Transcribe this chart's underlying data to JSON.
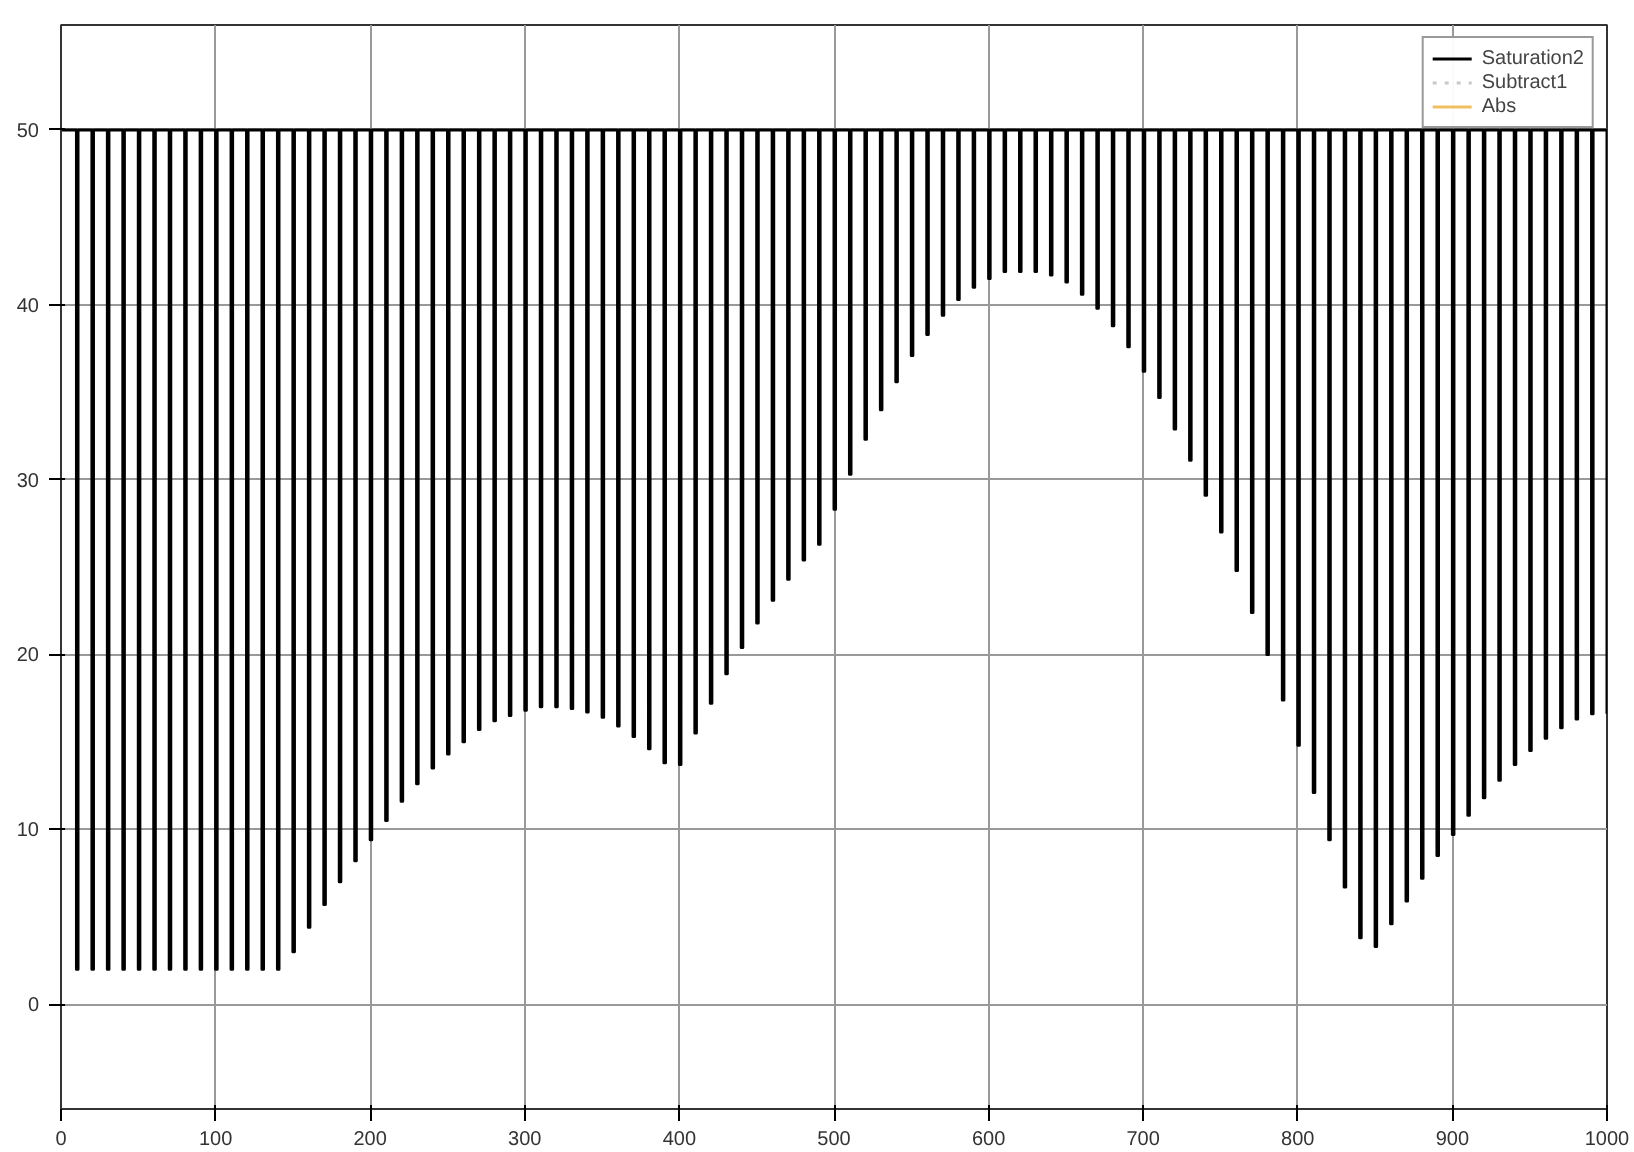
{
  "chart_data": {
    "type": "step",
    "xlim": [
      0,
      1000
    ],
    "ylim": [
      -6,
      56
    ],
    "xticks": [
      0,
      100,
      200,
      300,
      400,
      500,
      600,
      700,
      800,
      900,
      1000
    ],
    "yticks": [
      0,
      10,
      20,
      30,
      40,
      50
    ],
    "grid": true,
    "legend": "top right",
    "marker": "none",
    "series": [
      {
        "name": "Saturation2",
        "color": "#000000",
        "x": [
          0,
          10,
          11,
          20,
          21,
          30,
          31,
          40,
          41,
          50,
          51,
          60,
          61,
          70,
          71,
          80,
          81,
          90,
          91,
          100,
          101,
          110,
          111,
          120,
          121,
          130,
          131,
          140,
          141,
          150,
          151,
          160,
          161,
          170,
          171,
          180,
          181,
          190,
          191,
          200,
          201,
          210,
          211,
          220,
          221,
          230,
          231,
          240,
          241,
          250,
          251,
          260,
          261,
          270,
          271,
          280,
          281,
          290,
          291,
          300,
          301,
          310,
          311,
          320,
          321,
          330,
          331,
          340,
          341,
          350,
          351,
          360,
          361,
          370,
          371,
          380,
          381,
          390,
          391,
          400,
          401,
          410,
          411,
          420,
          421,
          430,
          431,
          440,
          441,
          450,
          451,
          460,
          461,
          470,
          471,
          480,
          481,
          490,
          491,
          500,
          501,
          510,
          511,
          520,
          521,
          530,
          531,
          540,
          541,
          550,
          551,
          560,
          561,
          570,
          571,
          580,
          581,
          590,
          591,
          600,
          601,
          610,
          611,
          620,
          621,
          630,
          631,
          640,
          641,
          650,
          651,
          660,
          661,
          670,
          671,
          680,
          681,
          690,
          691,
          700,
          701,
          710,
          711,
          720,
          721,
          730,
          731,
          740,
          741,
          750,
          751,
          760,
          761,
          770,
          771,
          780,
          781,
          790,
          791,
          800,
          801,
          810,
          811,
          820,
          821,
          830,
          831,
          840,
          841,
          850,
          851,
          860,
          861,
          870,
          871,
          880,
          881,
          890,
          891,
          900,
          901,
          910,
          911,
          920,
          921,
          930,
          931,
          940,
          941,
          950,
          951,
          960,
          961,
          970,
          971,
          980,
          981,
          990,
          991,
          1000
        ],
        "values": [
          50,
          2,
          50,
          2,
          50,
          2,
          50,
          2,
          50,
          2,
          50,
          2,
          50,
          2,
          50,
          2,
          50,
          2,
          50,
          2,
          50,
          2,
          50,
          2,
          50,
          2,
          50,
          2,
          50,
          3.0,
          50,
          4.4,
          50,
          5.7,
          50,
          7.0,
          50,
          8.2,
          50,
          9.4,
          50,
          10.5,
          50,
          11.6,
          50,
          12.6,
          50,
          13.5,
          50,
          14.3,
          50,
          15.0,
          50,
          15.7,
          50,
          16.2,
          50,
          16.5,
          50,
          16.8,
          50,
          17.0,
          50,
          17.0,
          50,
          16.9,
          50,
          16.7,
          50,
          16.4,
          50,
          15.9,
          50,
          15.3,
          50,
          14.6,
          50,
          13.8,
          50,
          13.7,
          50,
          15.5,
          50,
          17.2,
          50,
          18.9,
          50,
          20.4,
          50,
          21.8,
          50,
          23.1,
          50,
          24.3,
          50,
          25.4,
          50,
          26.3,
          50,
          28.3,
          50,
          30.3,
          50,
          32.3,
          50,
          34.0,
          50,
          35.6,
          50,
          37.1,
          50,
          38.3,
          50,
          39.4,
          50,
          40.3,
          50,
          41.0,
          50,
          41.5,
          50,
          41.9,
          50,
          41.9,
          50,
          41.9,
          50,
          41.7,
          50,
          41.3,
          50,
          40.6,
          50,
          39.8,
          50,
          38.8,
          50,
          37.6,
          50,
          36.2,
          50,
          34.7,
          50,
          32.9,
          50,
          31.1,
          50,
          29.1,
          50,
          27.0,
          50,
          24.8,
          50,
          22.4,
          50,
          20.0,
          50,
          17.4,
          50,
          14.8,
          50,
          12.1,
          50,
          9.4,
          50,
          6.7,
          50,
          3.8,
          50,
          3.3,
          50,
          4.6,
          50,
          5.9,
          50,
          7.2,
          50,
          8.5,
          50,
          9.7,
          50,
          10.8,
          50,
          11.8,
          50,
          12.8,
          50,
          13.7,
          50,
          14.5,
          50,
          15.2,
          50,
          15.8,
          50,
          16.3,
          50,
          16.6,
          50,
          16.6
        ]
      },
      {
        "name": "Subtract1",
        "color": "#c8c8c8",
        "line_style": "dotted"
      },
      {
        "name": "Abs",
        "color": "#f0c060"
      }
    ]
  }
}
